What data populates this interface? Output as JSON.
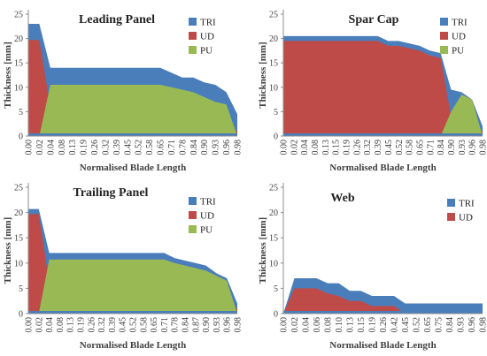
{
  "colors": {
    "TRI": "#4a7ebb",
    "UD": "#be4b48",
    "PU": "#98b954"
  },
  "chart_data": [
    {
      "type": "area",
      "title": "Leading Panel",
      "xlabel": "Normalised Blade Length",
      "ylabel": "Thickness [mm]",
      "ylim": [
        0,
        25
      ],
      "yticks": [
        "0",
        "5",
        "10",
        "15",
        "20",
        "25"
      ],
      "categories": [
        "0.00",
        "0.02",
        "0.04",
        "0.08",
        "0.13",
        "0.19",
        "0.26",
        "0.32",
        "0.39",
        "0.45",
        "0.52",
        "0.58",
        "0.65",
        "0.71",
        "0.78",
        "0.84",
        "0.90",
        "0.93",
        "0.96",
        "0.98"
      ],
      "legend": [
        "TRI",
        "UD",
        "PU"
      ],
      "legend_position": "top-right",
      "grid": false,
      "series": [
        {
          "name": "TRI",
          "values": [
            23,
            23,
            14,
            14,
            14,
            14,
            14,
            14,
            14,
            14,
            14,
            14,
            14,
            13,
            12,
            12,
            11,
            10.5,
            9,
            4.5
          ]
        },
        {
          "name": "UD",
          "values": [
            19.7,
            19.7,
            6,
            6,
            6,
            6,
            6,
            6,
            6,
            6,
            6,
            6,
            6,
            5,
            4.5,
            4,
            3,
            2,
            1.5,
            1
          ]
        },
        {
          "name": "PU",
          "values": [
            0,
            0,
            10.5,
            10.5,
            10.5,
            10.5,
            10.5,
            10.5,
            10.5,
            10.5,
            10.5,
            10.5,
            10.5,
            10,
            9.5,
            9,
            8,
            7,
            6.5,
            0
          ]
        }
      ]
    },
    {
      "type": "area",
      "title": "Spar Cap",
      "xlabel": "Normalised Blade Length",
      "ylabel": "Thickness [mm]",
      "ylim": [
        0,
        25
      ],
      "yticks": [
        "0",
        "5",
        "10",
        "15",
        "20",
        "25"
      ],
      "categories": [
        "0.00",
        "0.02",
        "0.04",
        "0.08",
        "0.13",
        "0.15",
        "0.19",
        "0.26",
        "0.32",
        "0.39",
        "0.45",
        "0.52",
        "0.58",
        "0.65",
        "0.71",
        "0.84",
        "0.90",
        "0.93",
        "0.96",
        "0.98"
      ],
      "legend": [
        "TRI",
        "UD",
        "PU"
      ],
      "legend_position": "top-right",
      "grid": false,
      "series": [
        {
          "name": "TRI",
          "values": [
            20.5,
            20.5,
            20.5,
            20.5,
            20.5,
            20.5,
            20.5,
            20.5,
            20.5,
            20.5,
            19.5,
            19.5,
            19,
            18.5,
            17.5,
            17,
            9.5,
            9,
            7.5,
            2
          ]
        },
        {
          "name": "UD",
          "values": [
            19.5,
            19.5,
            19.5,
            19.5,
            19.5,
            19.5,
            19.5,
            19.5,
            19.5,
            19.5,
            18.5,
            18.5,
            18,
            17.5,
            16.5,
            16,
            4,
            3,
            2,
            1
          ]
        },
        {
          "name": "PU",
          "values": [
            0,
            0,
            0,
            0,
            0,
            0,
            0,
            0,
            0,
            0,
            0,
            0,
            0,
            0,
            0,
            0,
            5,
            8.5,
            7.5,
            0
          ]
        }
      ]
    },
    {
      "type": "area",
      "title": "Trailing Panel",
      "xlabel": "Normalised Blade Length",
      "ylabel": "Thickness [mm]",
      "ylim": [
        0,
        25
      ],
      "yticks": [
        "0",
        "5",
        "10",
        "15",
        "20",
        "25"
      ],
      "categories": [
        "0.00",
        "0.02",
        "0.04",
        "0.08",
        "0.13",
        "0.19",
        "0.26",
        "0.32",
        "0.39",
        "0.45",
        "0.52",
        "0.58",
        "0.65",
        "0.71",
        "0.78",
        "0.84",
        "0.87",
        "0.90",
        "0.93",
        "0.96",
        "0.98"
      ],
      "legend": [
        "TRI",
        "UD",
        "PU"
      ],
      "legend_position": "top-right",
      "grid": false,
      "series": [
        {
          "name": "TRI",
          "values": [
            20.7,
            20.7,
            12,
            12,
            12,
            12,
            12,
            12,
            12,
            12,
            12,
            12,
            12,
            12,
            11,
            10.5,
            10,
            9.5,
            8,
            7,
            2
          ]
        },
        {
          "name": "UD",
          "values": [
            19.7,
            19.7,
            6,
            6,
            6,
            6,
            6,
            6,
            6,
            6,
            6,
            6,
            6,
            6,
            5,
            4.5,
            3.5,
            3,
            2,
            1,
            1
          ]
        },
        {
          "name": "PU",
          "values": [
            0,
            0,
            10.7,
            10.7,
            10.7,
            10.7,
            10.7,
            10.7,
            10.7,
            10.7,
            10.7,
            10.7,
            10.7,
            10.7,
            10,
            9.5,
            9,
            8.5,
            7.5,
            6.5,
            0
          ]
        }
      ]
    },
    {
      "type": "area",
      "title": "Web",
      "xlabel": "Normalised Blade Length",
      "ylabel": "Thickness [mm]",
      "ylim": [
        0,
        25
      ],
      "yticks": [
        "0",
        "5",
        "10",
        "15",
        "20",
        "25"
      ],
      "categories": [
        "0.00",
        "0.02",
        "0.04",
        "0.06",
        "0.08",
        "0.10",
        "0.13",
        "0.15",
        "0.19",
        "0.26",
        "0.42",
        "0.45",
        "0.52",
        "0.65",
        "0.75",
        "0.84",
        "0.93",
        "0.96",
        "0.98"
      ],
      "legend": [
        "TRI",
        "UD"
      ],
      "legend_position": "top-right",
      "grid": false,
      "series": [
        {
          "name": "TRI",
          "values": [
            0,
            7,
            7,
            7,
            6,
            6,
            4.5,
            4.5,
            3.5,
            3.5,
            3.5,
            2,
            2,
            2,
            2,
            2,
            2,
            2,
            2
          ]
        },
        {
          "name": "UD",
          "values": [
            0,
            5,
            5,
            5,
            4,
            3.5,
            2.5,
            2.5,
            1.5,
            1.5,
            1.5,
            0,
            0,
            0,
            0,
            0,
            0,
            0,
            0
          ]
        }
      ]
    }
  ]
}
